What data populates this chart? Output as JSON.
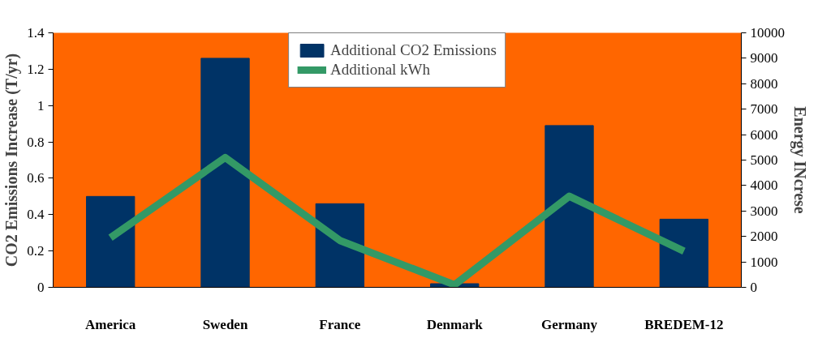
{
  "chart_data": {
    "type": "bar",
    "categories": [
      "America",
      "Sweden",
      "France",
      "Denmark",
      "Germany",
      "BREDEM-12"
    ],
    "ylabel": "CO2 Emissions Increase (T/yr)",
    "y2label": "Energy INcrese",
    "series": [
      {
        "name": "Additional CO2 Emissions",
        "color": "#003366",
        "values": [
          0.5,
          1.26,
          0.46,
          0.02,
          0.89,
          0.375
        ]
      },
      {
        "name": "Additional kWh",
        "color": "#339966",
        "type": "line",
        "axis": "y2",
        "values": [
          1950,
          5100,
          1840,
          100,
          3580,
          1420
        ]
      }
    ],
    "ylim": [
      0,
      1.4
    ],
    "yticks": [
      0,
      0.2,
      0.4,
      0.6,
      0.8,
      1,
      1.2,
      1.4
    ],
    "y2lim": [
      0,
      10000
    ],
    "y2ticks": [
      0,
      1000,
      2000,
      3000,
      4000,
      5000,
      6000,
      7000,
      8000,
      9000,
      10000
    ],
    "legend": "top",
    "grid": false
  }
}
